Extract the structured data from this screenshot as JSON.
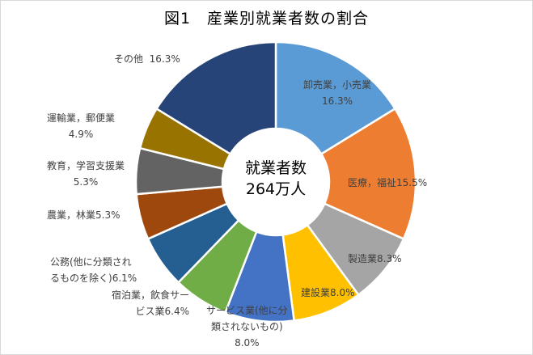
{
  "chart_data": {
    "type": "pie",
    "subtype": "doughnut",
    "title": "図1　産業別就業者数の割合",
    "center_label": [
      "就業者数",
      "264万人"
    ],
    "categories": [
      "卸売業，小売業",
      "医療，福祉",
      "製造業",
      "建設業",
      "サービス業(他に分類されないもの)",
      "宿泊業，飲食サービス業",
      "公務(他に分類されるものを除く)",
      "農業，林業",
      "教育，学習支援業",
      "運輸業，郵便業",
      "その他"
    ],
    "values": [
      16.3,
      15.5,
      8.3,
      8.0,
      8.0,
      6.4,
      6.1,
      5.3,
      5.3,
      4.9,
      16.3
    ],
    "unit": "%",
    "colors": [
      "#5b9bd5",
      "#ed7d31",
      "#a5a5a5",
      "#ffc000",
      "#4472c4",
      "#70ad47",
      "#255e91",
      "#9e480e",
      "#636363",
      "#997300",
      "#264478"
    ],
    "legend": "none (data labels)",
    "start_angle_deg": 0,
    "direction": "clockwise"
  },
  "title": "図1　産業別就業者数の割合",
  "center": {
    "line1": "就業者数",
    "line2": "264万人"
  },
  "labels": {
    "wholesale": {
      "name": "卸売業，小売業",
      "pct": "16.3%"
    },
    "medical": {
      "name": "医療，福祉",
      "pct": "15.5%"
    },
    "manufacturing": {
      "name": "製造業",
      "pct": "8.3%"
    },
    "construction": {
      "name": "建設業",
      "pct": "8.0%"
    },
    "services": {
      "name1": "サービス業(他に分",
      "name2": "類されないもの)",
      "pct": "8.0%"
    },
    "hospitality": {
      "name1": "宿泊業，飲食サー",
      "name2": "ビス業",
      "pct": "6.4%"
    },
    "public": {
      "name1": "公務(他に分類され",
      "name2": "るものを除く)",
      "pct": "6.1%"
    },
    "agriculture": {
      "name": "農業，林業",
      "pct": "5.3%"
    },
    "education": {
      "name": "教育，学習支援業",
      "pct": "5.3%"
    },
    "transport": {
      "name": "運輸業，郵便業",
      "pct": "4.9%"
    },
    "other": {
      "name": "その他",
      "pct": "16.3%"
    }
  }
}
